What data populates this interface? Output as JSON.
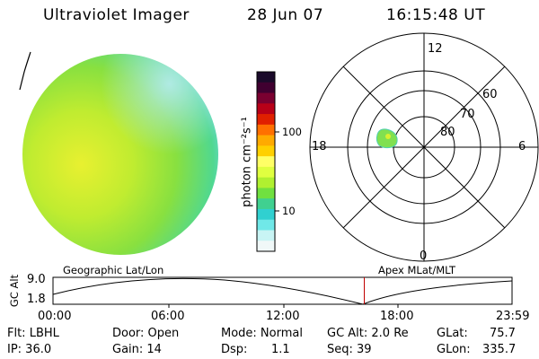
{
  "header": {
    "instrument": "Ultraviolet Imager",
    "date": "28 Jun 07",
    "time": "16:15:48 UT"
  },
  "colorbar": {
    "unit_label": "photon cm⁻²s⁻¹",
    "ticks": [
      "100",
      "10"
    ],
    "colors": [
      "#1a0a2a",
      "#400030",
      "#7a0030",
      "#b80018",
      "#e02000",
      "#ff7000",
      "#ffaa00",
      "#ffd000",
      "#ffff66",
      "#e0ff40",
      "#b0f030",
      "#70e040",
      "#40d090",
      "#30d0d0",
      "#70e8e8",
      "#c8f4f4",
      "#f0f8f8"
    ]
  },
  "polar_plot": {
    "mlt_labels": [
      "12",
      "18",
      "6",
      "0"
    ],
    "lat_labels": [
      "60",
      "70",
      "80"
    ]
  },
  "timeline": {
    "ylabel": "GC Alt",
    "yticks": [
      "9.0",
      "1.8"
    ],
    "left_title": "Geographic Lat/Lon",
    "right_title": "Apex MLat/MLT",
    "xticks": [
      "00:00",
      "06:00",
      "12:00",
      "18:00",
      "23:59"
    ],
    "current_time_fraction": 0.678,
    "marker_color": "#c00000"
  },
  "status": {
    "filter": "Flt: LBHL",
    "ip": "IP: 36.0",
    "door": "Door: Open",
    "gain": "Gain: 14",
    "mode": "Mode: Normal",
    "dsp_label": "Dsp:",
    "dsp_value": "1.1",
    "gc_alt": "GC Alt: 2.0 Re",
    "seq": "Seq: 39",
    "glat_label": "GLat:",
    "glat_value": "75.7",
    "glon_label": "GLon:",
    "glon_value": "335.7"
  }
}
